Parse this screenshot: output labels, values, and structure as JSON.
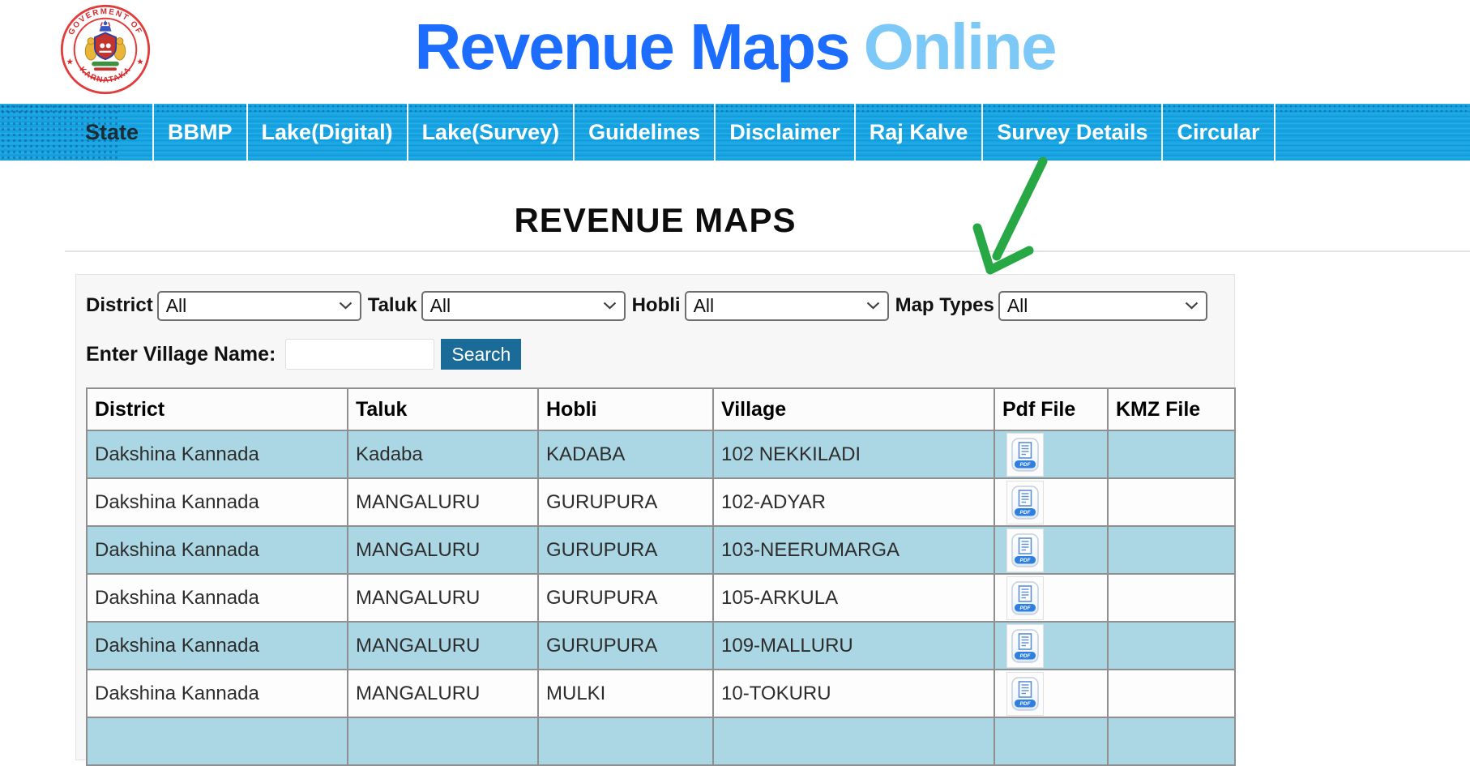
{
  "colors": {
    "title_blue": "#1C6DFE",
    "title_light": "#7CC9F8",
    "nav_bg": "#17A4E3",
    "row_blue": "#ABD7E4",
    "search_btn": "#1A6B97",
    "arrow_green": "#27A844",
    "seal_red": "#E03131"
  },
  "logo": {
    "top_text": "GOVERMENT OF",
    "bottom_text": "KARNATAKA"
  },
  "header": {
    "title_primary": "Revenue Maps",
    "title_secondary": "Online"
  },
  "nav": {
    "items": [
      {
        "label": "State",
        "active": true
      },
      {
        "label": "BBMP",
        "active": false
      },
      {
        "label": "Lake(Digital)",
        "active": false
      },
      {
        "label": "Lake(Survey)",
        "active": false
      },
      {
        "label": "Guidelines",
        "active": false
      },
      {
        "label": "Disclaimer",
        "active": false
      },
      {
        "label": "Raj Kalve",
        "active": false
      },
      {
        "label": "Survey Details",
        "active": false
      },
      {
        "label": "Circular",
        "active": false
      }
    ]
  },
  "main": {
    "heading": "REVENUE MAPS"
  },
  "filters": {
    "district": {
      "label": "District",
      "value": "All"
    },
    "taluk": {
      "label": "Taluk",
      "value": "All"
    },
    "hobli": {
      "label": "Hobli",
      "value": "All"
    },
    "map_types": {
      "label": "Map Types",
      "value": "All"
    }
  },
  "village_search": {
    "label": "Enter Village Name:",
    "value": "",
    "button_label": "Search"
  },
  "table": {
    "columns": [
      "District",
      "Taluk",
      "Hobli",
      "Village",
      "Pdf File",
      "KMZ File"
    ],
    "rows": [
      {
        "district": "Dakshina Kannada",
        "taluk": "Kadaba",
        "hobli": "KADABA",
        "village": "102 NEKKILADI",
        "pdf": true,
        "kmz": ""
      },
      {
        "district": "Dakshina Kannada",
        "taluk": "MANGALURU",
        "hobli": "GURUPURA",
        "village": "102-ADYAR",
        "pdf": true,
        "kmz": ""
      },
      {
        "district": "Dakshina Kannada",
        "taluk": "MANGALURU",
        "hobli": "GURUPURA",
        "village": "103-NEERUMARGA",
        "pdf": true,
        "kmz": ""
      },
      {
        "district": "Dakshina Kannada",
        "taluk": "MANGALURU",
        "hobli": "GURUPURA",
        "village": "105-ARKULA",
        "pdf": true,
        "kmz": ""
      },
      {
        "district": "Dakshina Kannada",
        "taluk": "MANGALURU",
        "hobli": "GURUPURA",
        "village": "109-MALLURU",
        "pdf": true,
        "kmz": ""
      },
      {
        "district": "Dakshina Kannada",
        "taluk": "MANGALURU",
        "hobli": "MULKI",
        "village": "10-TOKURU",
        "pdf": true,
        "kmz": ""
      }
    ]
  },
  "annotation": {
    "description": "hand-drawn green arrow pointing down-left toward the filter row"
  }
}
